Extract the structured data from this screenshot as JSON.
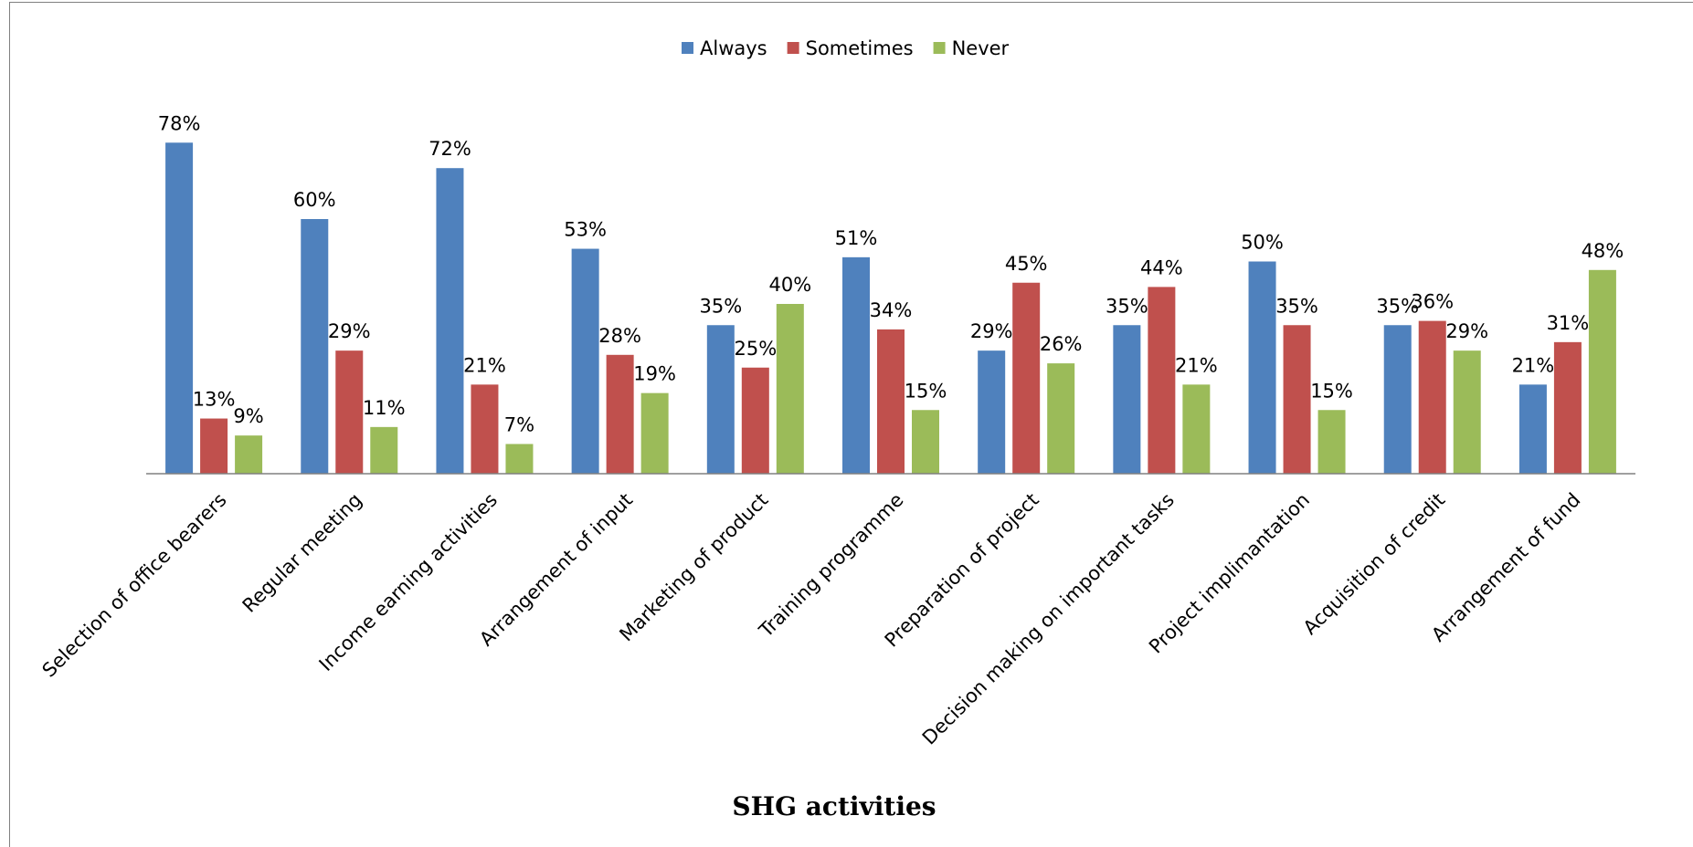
{
  "chart_data": {
    "type": "bar",
    "title": "",
    "xlabel": "SHG activities",
    "ylabel": "",
    "ylim": [
      0,
      100
    ],
    "grid": false,
    "legend_position": "top-center",
    "categories": [
      "Selection of office bearers",
      "Regular meeting",
      "Income earning activities",
      "Arrangement of input",
      "Marketing of product",
      "Training programme",
      "Preparation of project",
      "Decision making on important tasks",
      "Project implimantation",
      "Acquisition of credit",
      "Arrangement of fund"
    ],
    "series": [
      {
        "name": "Always",
        "color": "#4F81BD",
        "values": [
          78,
          60,
          72,
          53,
          35,
          51,
          29,
          35,
          50,
          35,
          21
        ]
      },
      {
        "name": "Sometimes",
        "color": "#C0504D",
        "values": [
          13,
          29,
          21,
          28,
          25,
          34,
          45,
          44,
          35,
          36,
          31
        ]
      },
      {
        "name": "Never",
        "color": "#9BBB59",
        "values": [
          9,
          11,
          7,
          19,
          40,
          15,
          26,
          21,
          15,
          29,
          48
        ]
      }
    ],
    "value_suffix": "%"
  }
}
